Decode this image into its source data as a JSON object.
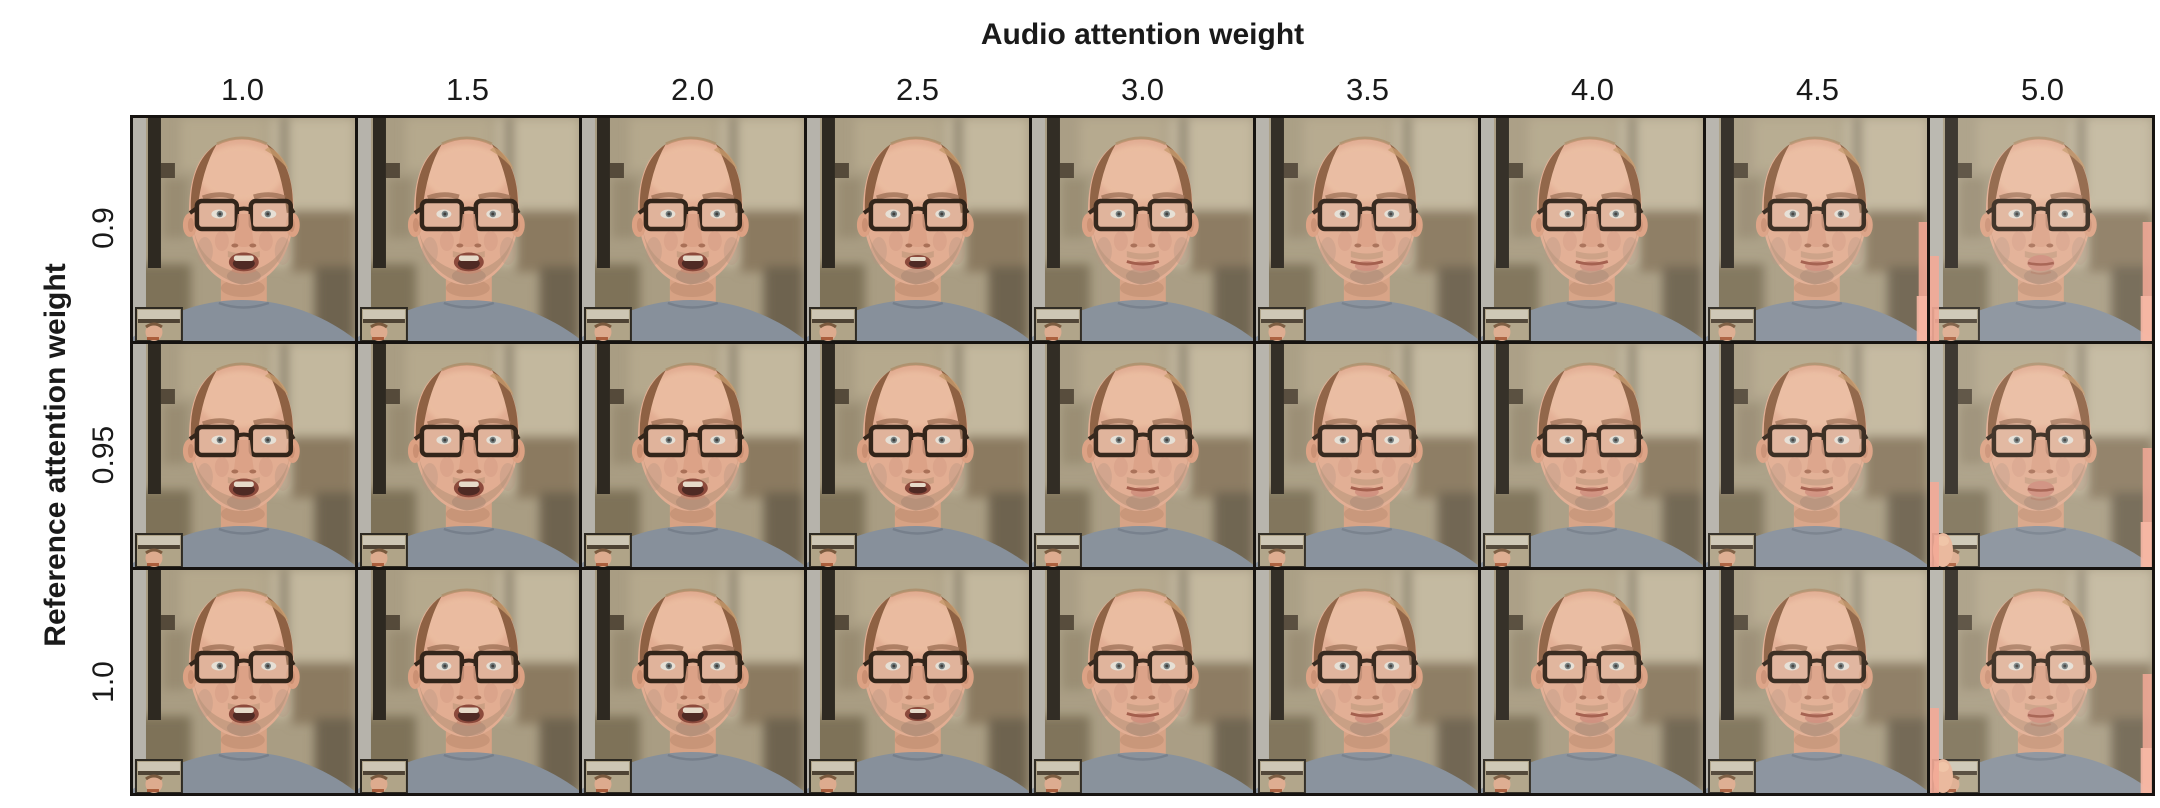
{
  "figure": {
    "x_axis": {
      "title": "Audio attention weight",
      "ticks": [
        "1.0",
        "1.5",
        "2.0",
        "2.5",
        "3.0",
        "3.5",
        "4.0",
        "4.5",
        "5.0"
      ]
    },
    "y_axis": {
      "title": "Reference attention weight",
      "ticks": [
        "0.9",
        "0.95",
        "1.0"
      ]
    },
    "grid": {
      "rows": 3,
      "cols": 9
    },
    "subject": "man with rectangular glasses, balding reddish hair, gray t-shirt, blurred tan room background, webcam inset bottom-left",
    "colors": {
      "text": "#1a1a1a",
      "grid_line": "#161310",
      "bg_base": "#a99d83",
      "bg_light_strip": "#b6b3ab",
      "bg_dark_bar": "#2e2921",
      "bg_light_right": "#c3b89e",
      "bg_brown_blob": "#8b7a60",
      "bg_olive": "#7e7258",
      "skin": "#e2ad92",
      "skin_light": "#eec2a6",
      "skin_shadow": "#c9937a",
      "hair": "#8e6143",
      "hair_light": "#c59a6c",
      "glasses": "#33251a",
      "eye_white": "#e9e3d9",
      "iris": "#5d6b6e",
      "brow": "#a3765a",
      "nose": "#dba085",
      "nostril": "#a97057",
      "mouth_dark": "#4f2a24",
      "lip": "#cf8d7b",
      "lip_line": "#a25b49",
      "teeth": "#e6dac9",
      "stubble": "#a98a6e",
      "neck": "#d7a284",
      "shirt": "#87909b",
      "shirt_dark": "#6f7884",
      "inset_bg": "#cdc6b4",
      "inset_bar": "#4e4334",
      "artifact_pink": "#f2a28e"
    },
    "cells": [
      {
        "ref": "0.9",
        "audio": "1.0",
        "mouth": "open",
        "washout": 0,
        "pink_left": false,
        "pink_right": false,
        "thumb": false
      },
      {
        "ref": "0.9",
        "audio": "1.5",
        "mouth": "open",
        "washout": 0,
        "pink_left": false,
        "pink_right": false,
        "thumb": false
      },
      {
        "ref": "0.9",
        "audio": "2.0",
        "mouth": "open",
        "washout": 0,
        "pink_left": false,
        "pink_right": false,
        "thumb": false
      },
      {
        "ref": "0.9",
        "audio": "2.5",
        "mouth": "half",
        "washout": 0,
        "pink_left": false,
        "pink_right": false,
        "thumb": false
      },
      {
        "ref": "0.9",
        "audio": "3.0",
        "mouth": "closed",
        "washout": 0.02,
        "pink_left": false,
        "pink_right": false,
        "thumb": false
      },
      {
        "ref": "0.9",
        "audio": "3.5",
        "mouth": "closed",
        "washout": 0.03,
        "pink_left": false,
        "pink_right": false,
        "thumb": false
      },
      {
        "ref": "0.9",
        "audio": "4.0",
        "mouth": "closed",
        "washout": 0.04,
        "pink_left": false,
        "pink_right": false,
        "thumb": false
      },
      {
        "ref": "0.9",
        "audio": "4.5",
        "mouth": "closed",
        "washout": 0.05,
        "pink_left": false,
        "pink_right": true,
        "thumb": false
      },
      {
        "ref": "0.9",
        "audio": "5.0",
        "mouth": "pursed",
        "washout": 0.08,
        "pink_left": true,
        "pink_right": true,
        "thumb": false
      },
      {
        "ref": "0.95",
        "audio": "1.0",
        "mouth": "open",
        "washout": 0,
        "pink_left": false,
        "pink_right": false,
        "thumb": false
      },
      {
        "ref": "0.95",
        "audio": "1.5",
        "mouth": "open",
        "washout": 0,
        "pink_left": false,
        "pink_right": false,
        "thumb": false
      },
      {
        "ref": "0.95",
        "audio": "2.0",
        "mouth": "open",
        "washout": 0,
        "pink_left": false,
        "pink_right": false,
        "thumb": false
      },
      {
        "ref": "0.95",
        "audio": "2.5",
        "mouth": "half",
        "washout": 0,
        "pink_left": false,
        "pink_right": false,
        "thumb": false
      },
      {
        "ref": "0.95",
        "audio": "3.0",
        "mouth": "closed",
        "washout": 0.02,
        "pink_left": false,
        "pink_right": false,
        "thumb": false
      },
      {
        "ref": "0.95",
        "audio": "3.5",
        "mouth": "closed",
        "washout": 0.03,
        "pink_left": false,
        "pink_right": false,
        "thumb": false
      },
      {
        "ref": "0.95",
        "audio": "4.0",
        "mouth": "closed",
        "washout": 0.04,
        "pink_left": false,
        "pink_right": false,
        "thumb": false
      },
      {
        "ref": "0.95",
        "audio": "4.5",
        "mouth": "closed",
        "washout": 0.05,
        "pink_left": false,
        "pink_right": false,
        "thumb": false
      },
      {
        "ref": "0.95",
        "audio": "5.0",
        "mouth": "pursed",
        "washout": 0.08,
        "pink_left": true,
        "pink_right": true,
        "thumb": true
      },
      {
        "ref": "1.0",
        "audio": "1.0",
        "mouth": "open",
        "washout": 0,
        "pink_left": false,
        "pink_right": false,
        "thumb": false
      },
      {
        "ref": "1.0",
        "audio": "1.5",
        "mouth": "open",
        "washout": 0,
        "pink_left": false,
        "pink_right": false,
        "thumb": false
      },
      {
        "ref": "1.0",
        "audio": "2.0",
        "mouth": "open",
        "washout": 0,
        "pink_left": false,
        "pink_right": false,
        "thumb": false
      },
      {
        "ref": "1.0",
        "audio": "2.5",
        "mouth": "half",
        "washout": 0,
        "pink_left": false,
        "pink_right": false,
        "thumb": false
      },
      {
        "ref": "1.0",
        "audio": "3.0",
        "mouth": "closed",
        "washout": 0.02,
        "pink_left": false,
        "pink_right": false,
        "thumb": false
      },
      {
        "ref": "1.0",
        "audio": "3.5",
        "mouth": "closed",
        "washout": 0.03,
        "pink_left": false,
        "pink_right": false,
        "thumb": false
      },
      {
        "ref": "1.0",
        "audio": "4.0",
        "mouth": "closed",
        "washout": 0.04,
        "pink_left": false,
        "pink_right": false,
        "thumb": false
      },
      {
        "ref": "1.0",
        "audio": "4.5",
        "mouth": "closed",
        "washout": 0.05,
        "pink_left": false,
        "pink_right": false,
        "thumb": false
      },
      {
        "ref": "1.0",
        "audio": "5.0",
        "mouth": "pursed",
        "washout": 0.08,
        "pink_left": true,
        "pink_right": true,
        "thumb": true
      }
    ]
  }
}
